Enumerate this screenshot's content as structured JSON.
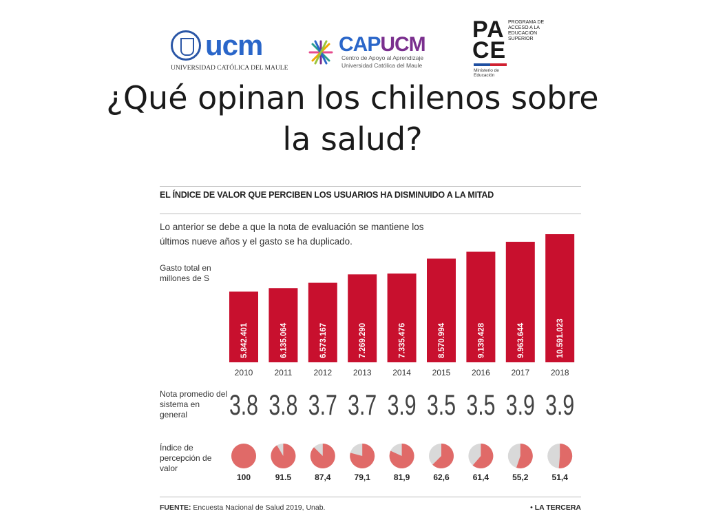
{
  "logos": {
    "ucm": {
      "word": "ucm",
      "subtitle": "UNIVERSIDAD CATÓLICA DEL MAULE"
    },
    "capucm": {
      "word_a": "CAP",
      "word_b": "UCM",
      "line1": "Centro de Apoyo al Aprendizaje",
      "line2": "Universidad Católica del Maule"
    },
    "pace": {
      "big1": "PA",
      "big2": "CE",
      "small": "PROGRAMA DE ACCESO A LA EDUCACIÓN SUPERIOR",
      "ministry": "Ministerio de Educación"
    }
  },
  "slide": {
    "title_line1": "¿Qué opinan los chilenos sobre",
    "title_line2": "la salud?"
  },
  "infographic": {
    "headline": "EL ÍNDICE DE VALOR QUE PERCIBEN LOS USUARIOS HA DISMINUIDO A LA MITAD",
    "description": "Lo anterior se debe a que la nota de evaluación se mantiene los últimos nueve años y el gasto se ha duplicado.",
    "label_spend": "Gasto total en millones de S",
    "label_grade": "Nota promedio del sistema en general",
    "label_index": "Índice de percepción de valor",
    "source_prefix": "FUENTE:",
    "source_text": "Encuesta Nacional de Salud 2019, Unab.",
    "brand": "• LA TERCERA"
  },
  "colors": {
    "bar": "#c8102e",
    "pie_fill": "#e06a68",
    "pie_bg": "#d9d9d9",
    "grade": "#444444"
  },
  "chart_data": {
    "type": "bar",
    "title": "EL ÍNDICE DE VALOR QUE PERCIBEN LOS USUARIOS HA DISMINUIDO A LA MITAD",
    "ylabel": "Gasto total en millones de S",
    "categories": [
      "2010",
      "2011",
      "2012",
      "2013",
      "2014",
      "2015",
      "2016",
      "2017",
      "2018"
    ],
    "values": [
      5842401,
      6135064,
      6573167,
      7269290,
      7335476,
      8570994,
      9139428,
      9963644,
      10591023
    ],
    "value_labels": [
      "5.842.401",
      "6.135.064",
      "6.573.167",
      "7.269.290",
      "7.335.476",
      "8.570.994",
      "9.139.428",
      "9.963.644",
      "10.591.023"
    ],
    "ylim": [
      0,
      10591023
    ],
    "series": [
      {
        "name": "Nota promedio del sistema en general",
        "values": [
          "3.8",
          "3.8",
          "3.7",
          "3.7",
          "3.9",
          "3.5",
          "3.5",
          "3.9",
          "3.9"
        ]
      },
      {
        "name": "Índice de percepción de valor",
        "values": [
          100,
          91.5,
          87.4,
          79.1,
          81.9,
          62.6,
          61.4,
          55.2,
          51.4
        ],
        "labels": [
          "100",
          "91.5",
          "87,4",
          "79,1",
          "81,9",
          "62,6",
          "61,4",
          "55,2",
          "51,4"
        ]
      }
    ]
  }
}
